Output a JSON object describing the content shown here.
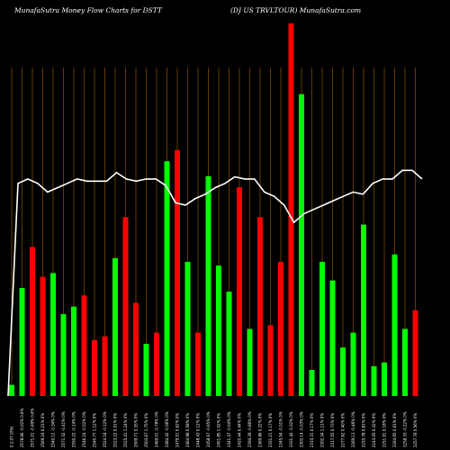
{
  "chart_data": {
    "type": "bar",
    "title_left": "MunafaSutra  Money Flow  Charts for DSTT",
    "title_right": "(DJ US TRVLTOUR) MunafaSutra.com",
    "colors": {
      "up": "#00ff00",
      "down": "#ff0000",
      "line": "#ffffff",
      "grid": "#7a4a00",
      "background": "#000000"
    },
    "ylim": [
      0,
      100
    ],
    "bars": [
      {
        "label": "0 2.07 (0%)",
        "value": 3,
        "color": "up"
      },
      {
        "label": "2578.66 -0.02% 0.6%",
        "value": 29,
        "color": "up"
      },
      {
        "label": "2571.01 -0.49% 0.6%",
        "value": 40,
        "color": "down"
      },
      {
        "label": "2569.24 0.21% 0%",
        "value": 32,
        "color": "down"
      },
      {
        "label": "2540.12 -0.34% 0%",
        "value": 33,
        "color": "up"
      },
      {
        "label": "2571.32 -0.41% 0%",
        "value": 22,
        "color": "up"
      },
      {
        "label": "2550.22 -0.14% 0%",
        "value": 24,
        "color": "up"
      },
      {
        "label": "2546.24 -0.52% 0%",
        "value": 27,
        "color": "down"
      },
      {
        "label": "2540.77 1.12% 0%",
        "value": 15,
        "color": "down"
      },
      {
        "label": "2524.18 -0.12% 0%",
        "value": 16,
        "color": "down"
      },
      {
        "label": "2523.22 0.51% 0%",
        "value": 37,
        "color": "up"
      },
      {
        "label": "2525.41 1.24% 0%",
        "value": 48,
        "color": "down"
      },
      {
        "label": "2509.71 0.35% 0%",
        "value": 25,
        "color": "down"
      },
      {
        "label": "2503.67 1.75% 0%",
        "value": 14,
        "color": "up"
      },
      {
        "label": "2469.01 -0.78% 0%",
        "value": 17,
        "color": "down"
      },
      {
        "label": "2484.42 -0.56% 0%",
        "value": 63,
        "color": "up"
      },
      {
        "label": "2479.51 0.62% 0%",
        "value": 66,
        "color": "down"
      },
      {
        "label": "2464.98 0.58% 0%",
        "value": 36,
        "color": "up"
      },
      {
        "label": "2448.43 0.12% 0%",
        "value": 17,
        "color": "down"
      },
      {
        "label": "2458.67 -0.65% 0%",
        "value": 59,
        "color": "up"
      },
      {
        "label": "2451.85 1.02% 0%",
        "value": 35,
        "color": "up"
      },
      {
        "label": "2441.47 -0.04% 0%",
        "value": 28,
        "color": "up"
      },
      {
        "label": "2420.44 0.44% 0%",
        "value": 56,
        "color": "down"
      },
      {
        "label": "2394.39 -0.86% 0%",
        "value": 18,
        "color": "up"
      },
      {
        "label": "2369.86 0.22% 0%",
        "value": 48,
        "color": "down"
      },
      {
        "label": "2351.21 0.17% 0%",
        "value": 19,
        "color": "down"
      },
      {
        "label": "2345.54 -0.51% 0%",
        "value": 36,
        "color": "down"
      },
      {
        "label": "2331.44 -1.02% 0%",
        "value": 100,
        "color": "down"
      },
      {
        "label": "2302.14 -0.53% 0%",
        "value": 81,
        "color": "up"
      },
      {
        "label": "2310.31 0.17% 0%",
        "value": 7,
        "color": "up"
      },
      {
        "label": "2302.34 1.11% 0%",
        "value": 36,
        "color": "up"
      },
      {
        "label": "2317.55 0.73% 0%",
        "value": 31,
        "color": "up"
      },
      {
        "label": "2277.62 0.40% 0%",
        "value": 13,
        "color": "up"
      },
      {
        "label": "2269.13 -0.46% 0%",
        "value": 17,
        "color": "up"
      },
      {
        "label": "2255.78 0.81% 0%",
        "value": 46,
        "color": "up"
      },
      {
        "label": "2243.05 0.32% 0%",
        "value": 8,
        "color": "up"
      },
      {
        "label": "2251.91 0.18% 0%",
        "value": 9,
        "color": "up"
      },
      {
        "label": "2264.65 0.61% 0%",
        "value": 38,
        "color": "up"
      },
      {
        "label": "2258.33 -0.22% 0%",
        "value": 18,
        "color": "up"
      },
      {
        "label": "2257.78 0.56% 0%",
        "value": 23,
        "color": "down"
      }
    ],
    "line_series": [
      98,
      100,
      98,
      94,
      96,
      98,
      100,
      99,
      99,
      99,
      103,
      100,
      99,
      100,
      100,
      97,
      89,
      88,
      91,
      93,
      96,
      98,
      101,
      100,
      100,
      94,
      92,
      88,
      80,
      84,
      86,
      88,
      90,
      92,
      94,
      93,
      98,
      100,
      100,
      104,
      104,
      100
    ],
    "line_range": [
      0,
      140
    ]
  }
}
